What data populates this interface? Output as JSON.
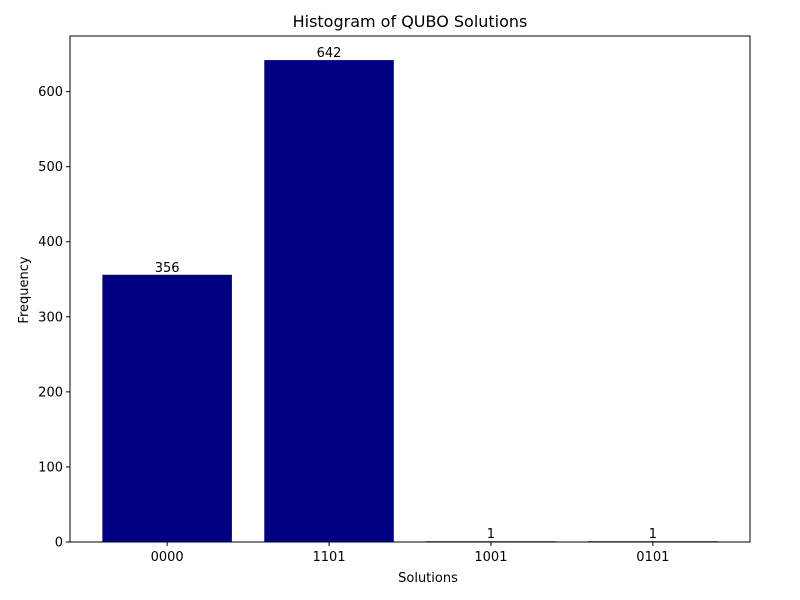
{
  "chart_data": {
    "type": "bar",
    "title": "Histogram of QUBO Solutions",
    "xlabel": "Solutions",
    "ylabel": "Frequency",
    "categories": [
      "0000",
      "1101",
      "1001",
      "0101"
    ],
    "values": [
      356,
      642,
      1,
      1
    ],
    "data_labels": [
      "356",
      "642",
      "1",
      "1"
    ],
    "ylim": [
      0,
      674.1
    ],
    "yticks": [
      0,
      100,
      200,
      300,
      400,
      500,
      600
    ],
    "bar_color": "#000080",
    "grid": false
  }
}
